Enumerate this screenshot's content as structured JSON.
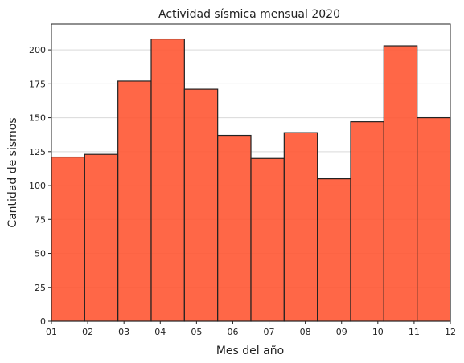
{
  "chart_data": {
    "type": "bar",
    "title": "Actividad sísmica mensual 2020",
    "xlabel": "Mes del año",
    "ylabel": "Cantidad de sismos",
    "categories": [
      "01",
      "02",
      "03",
      "04",
      "05",
      "06",
      "07",
      "08",
      "09",
      "10",
      "11",
      "12"
    ],
    "values": [
      121,
      123,
      177,
      208,
      171,
      137,
      120,
      139,
      105,
      147,
      203,
      150
    ],
    "x_ticks": [
      "01",
      "02",
      "03",
      "04",
      "05",
      "06",
      "07",
      "08",
      "09",
      "10",
      "11",
      "12"
    ],
    "y_ticks": [
      0,
      25,
      50,
      75,
      100,
      125,
      150,
      175,
      200
    ],
    "ylim": [
      0,
      219
    ],
    "grid": "horizontal",
    "bar_color": "#FF5733",
    "bar_edge_color": "#222222"
  }
}
